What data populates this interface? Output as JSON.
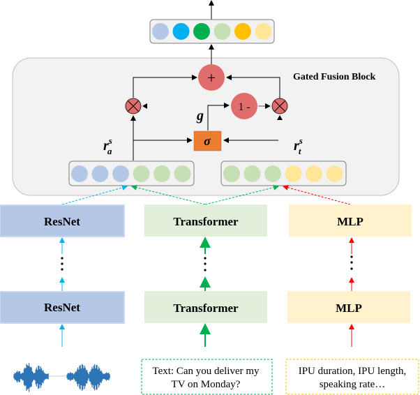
{
  "block_title": "Gated Fusion Block",
  "plus_symbol": "+",
  "one_minus_label": "1 -",
  "sigma_label": "σ",
  "gate_label": "g",
  "audio_rep": {
    "base": "r",
    "sup": "s",
    "sub": "a"
  },
  "text_rep": {
    "base": "r",
    "sup": "s",
    "sub": "t"
  },
  "encoders": {
    "audio": {
      "label": "ResNet",
      "color": "#b4c7e7",
      "arrow_color": "#00b0f0"
    },
    "text": {
      "label": "Transformer",
      "color": "#e2efda",
      "arrow_color": "#00b050"
    },
    "prosody": {
      "label": "MLP",
      "color": "#fff2cc",
      "arrow_color": "#ff0000"
    }
  },
  "inputs": {
    "text_lines": [
      "Text: Can you deliver my",
      "TV on Monday?"
    ],
    "prosody_lines": [
      "IPU duration, IPU length,",
      "speaking rate…"
    ]
  },
  "colors": {
    "output_vector": [
      "#b4c7e7",
      "#00b0f0",
      "#00b050",
      "#c5e0b4",
      "#ffc000",
      "#ffe699"
    ],
    "left_vector": [
      "#b4c7e7",
      "#b4c7e7",
      "#b4c7e7",
      "#c5e0b4",
      "#c5e0b4",
      "#c5e0b4"
    ],
    "right_vector": [
      "#c5e0b4",
      "#c5e0b4",
      "#c5e0b4",
      "#ffe699",
      "#ffe699",
      "#ffe699"
    ],
    "operator": "#e06c6c",
    "sigma_box": "#ed7d31",
    "block_bg": "#f2f2f2"
  }
}
